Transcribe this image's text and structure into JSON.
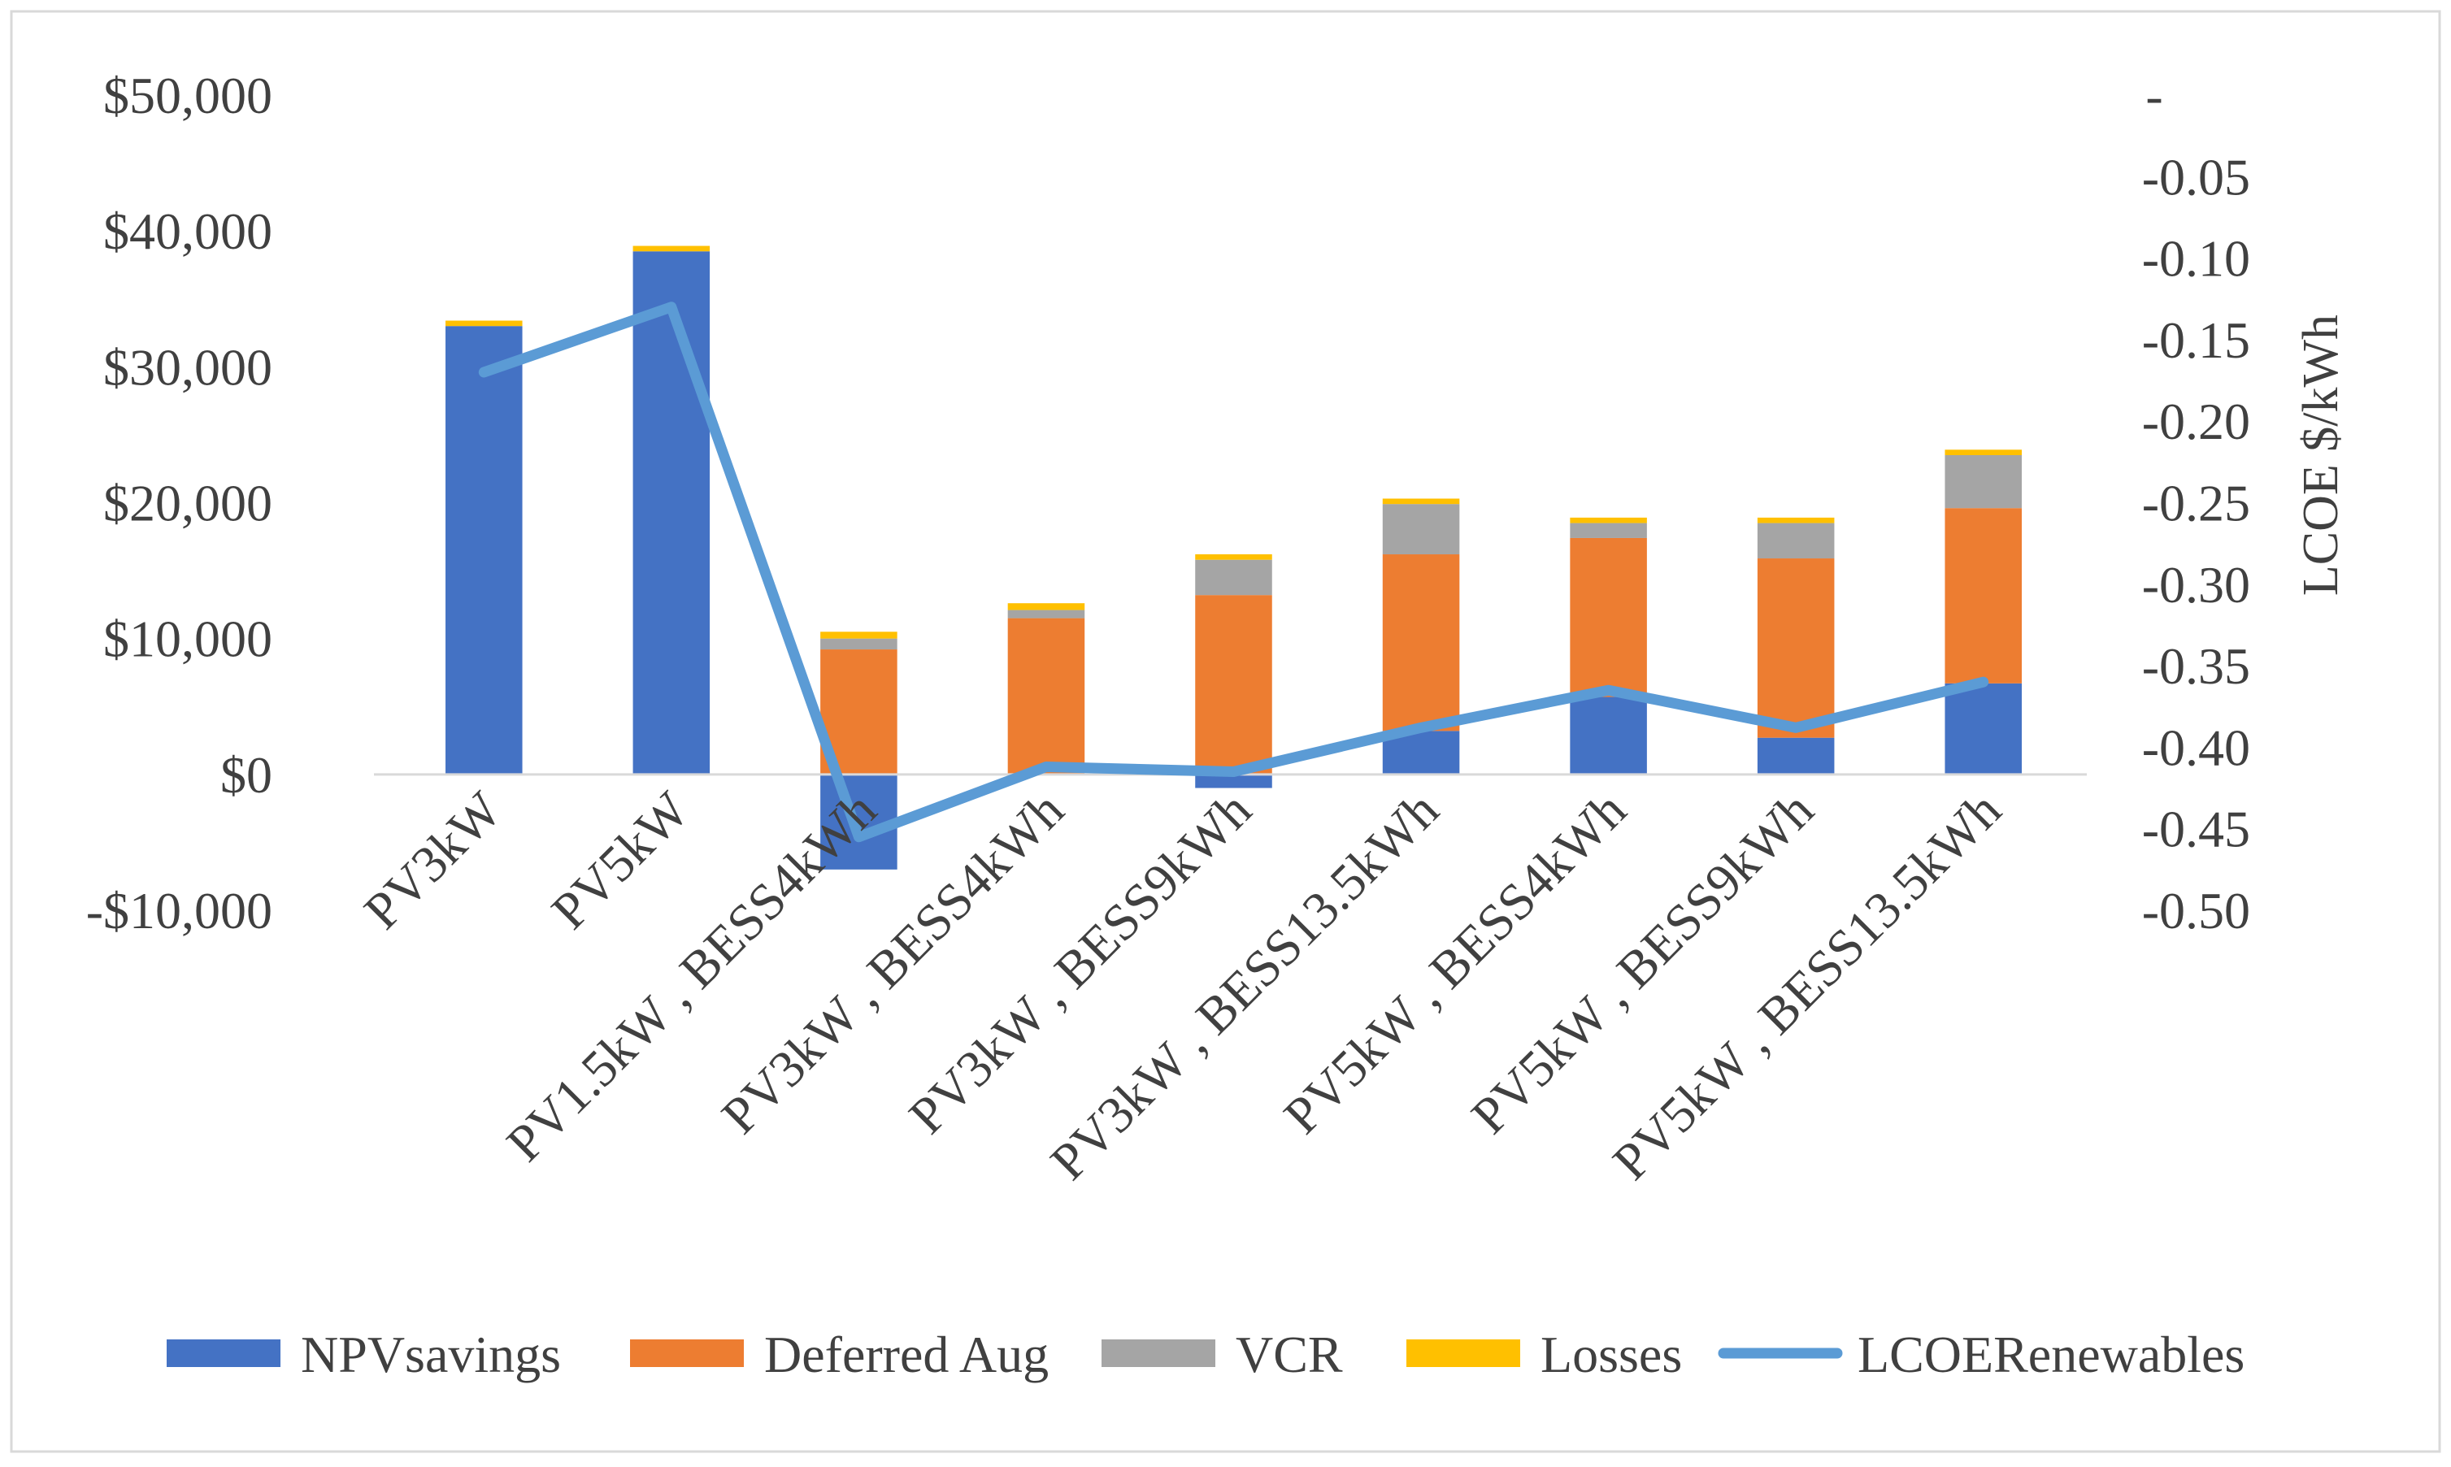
{
  "chart_data": {
    "type": "bar",
    "stacked": true,
    "categories": [
      "PV3kW",
      "PV5kW",
      "PV1.5kW , BESS4kWh",
      "PV3kW , BESS4kWh",
      "PV3kW , BESS9kWh",
      "PV3kW , BESS13.5kWh",
      "PV5kW , BESS4kWh",
      "PV5kW , BESS9kWh",
      "PV5kW , BESS13.5kWh"
    ],
    "series": [
      {
        "name": "NPVsavings",
        "type": "bar",
        "axis": "left",
        "color": "#4472C4",
        "values": [
          33000,
          38500,
          -7000,
          0,
          -1000,
          3200,
          5700,
          2700,
          6700
        ]
      },
      {
        "name": "Deferred Aug",
        "type": "bar",
        "axis": "left",
        "color": "#ED7D31",
        "values": [
          0,
          0,
          9200,
          11500,
          13200,
          13000,
          11700,
          13200,
          12900
        ]
      },
      {
        "name": "VCR",
        "type": "bar",
        "axis": "left",
        "color": "#A5A5A5",
        "values": [
          0,
          0,
          800,
          600,
          2600,
          3700,
          1100,
          2600,
          3900
        ]
      },
      {
        "name": "Losses",
        "type": "bar",
        "axis": "left",
        "color": "#FFC000",
        "values": [
          400,
          400,
          500,
          500,
          400,
          400,
          400,
          400,
          400
        ]
      },
      {
        "name": "LCOERenewables",
        "type": "line",
        "axis": "right",
        "color": "#5B9BD5",
        "values": [
          -0.17,
          -0.13,
          -0.455,
          -0.412,
          -0.415,
          -0.388,
          -0.365,
          -0.388,
          -0.36
        ]
      }
    ],
    "y_left": {
      "ylim": [
        -10000,
        50000
      ],
      "ticks": [
        -10000,
        0,
        10000,
        20000,
        30000,
        40000,
        50000
      ],
      "tick_labels": [
        "-$10,000",
        "$0",
        "$10,000",
        "$20,000",
        "$30,000",
        "$40,000",
        "$50,000"
      ]
    },
    "y_right": {
      "label": "LCOE  $/kWh",
      "ylim": [
        -0.5,
        0
      ],
      "ticks": [
        0,
        -0.05,
        -0.1,
        -0.15,
        -0.2,
        -0.25,
        -0.3,
        -0.35,
        -0.4,
        -0.45,
        -0.5
      ],
      "tick_labels": [
        "-",
        "-0.05",
        "-0.10",
        "-0.15",
        "-0.20",
        "-0.25",
        "-0.30",
        "-0.35",
        "-0.40",
        "-0.45",
        "-0.50"
      ]
    },
    "legend_position": "bottom",
    "grid": false
  }
}
